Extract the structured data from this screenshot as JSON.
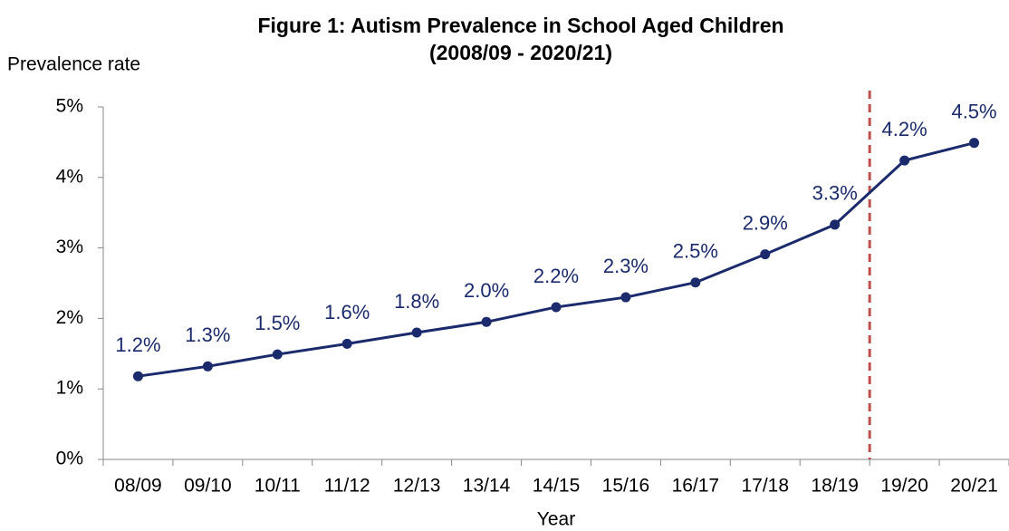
{
  "chart_data": {
    "type": "line",
    "title": "Figure 1: Autism  Prevalence in School Aged Children",
    "subtitle": "(2008/09 - 2020/21)",
    "y_label": "Prevalence rate",
    "x_label": "Year",
    "categories": [
      "08/09",
      "09/10",
      "10/11",
      "11/12",
      "12/13",
      "13/14",
      "14/15",
      "15/16",
      "16/17",
      "17/18",
      "18/19",
      "19/20",
      "20/21"
    ],
    "series": [
      {
        "name": "Prevalence rate",
        "color": "#1a2a6c",
        "values": [
          1.18,
          1.32,
          1.49,
          1.64,
          1.8,
          1.95,
          2.16,
          2.3,
          2.51,
          2.91,
          3.33,
          4.24,
          4.49
        ],
        "value_labels": [
          "1.2%",
          "1.3%",
          "1.5%",
          "1.6%",
          "1.8%",
          "2.0%",
          "2.2%",
          "2.3%",
          "2.5%",
          "2.9%",
          "3.3%",
          "4.2%",
          "4.5%"
        ]
      }
    ],
    "ylim": [
      0,
      5
    ],
    "yticks": [
      {
        "value": 0,
        "label": "0%"
      },
      {
        "value": 1,
        "label": "1%"
      },
      {
        "value": 2,
        "label": "2%"
      },
      {
        "value": 3,
        "label": "3%"
      },
      {
        "value": 4,
        "label": "4%"
      },
      {
        "value": 5,
        "label": "5%"
      }
    ],
    "grid": false
  }
}
